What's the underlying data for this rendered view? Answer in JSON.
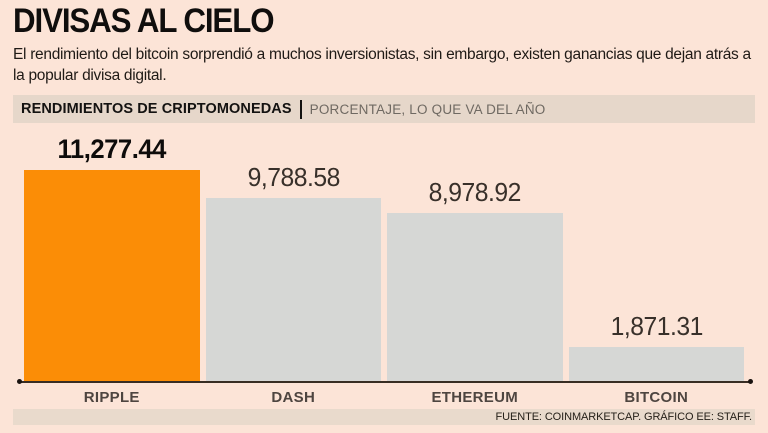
{
  "header": {
    "title": "DIVISAS AL CIELO",
    "subtitle": "El rendimiento del bitcoin sorprendió a muchos inversionistas, sin embargo, existen ganancias que dejan atrás a la popular divisa digital."
  },
  "kicker": {
    "primary": "RENDIMIENTOS DE CRIPTOMONEDAS",
    "secondary": "PORCENTAJE, LO QUE VA DEL AÑO"
  },
  "chart_data": {
    "type": "bar",
    "title": "RENDIMIENTOS DE CRIPTOMONEDAS",
    "subtitle": "PORCENTAJE, LO QUE VA DEL AÑO",
    "categories": [
      "RIPPLE",
      "DASH",
      "ETHEREUM",
      "BITCOIN"
    ],
    "values": [
      11277.44,
      9788.58,
      8978.92,
      1871.31
    ],
    "value_labels": [
      "11,277.44",
      "9,788.58",
      "8,978.92",
      "1,871.31"
    ],
    "highlight_index": 0,
    "xlabel": "",
    "ylabel": "",
    "ylim": [
      0,
      11277.44
    ],
    "grid": false,
    "legend": "none",
    "orientation": "vertical"
  },
  "footer": {
    "source": "FUENTE: COINMARKETCAP. GRÁFICO EE: STAFF."
  },
  "colors": {
    "background": "#fce4d7",
    "kicker_bar_bg": "#e6d7ca",
    "footer_bar_bg": "#e9dacc",
    "bar_highlight": "#fb8d06",
    "bar_default": "#d6d7d5",
    "axis": "#382d23",
    "title_text": "#100e0d",
    "secondary_text": "#6f6962",
    "category_text": "#4e4540"
  }
}
